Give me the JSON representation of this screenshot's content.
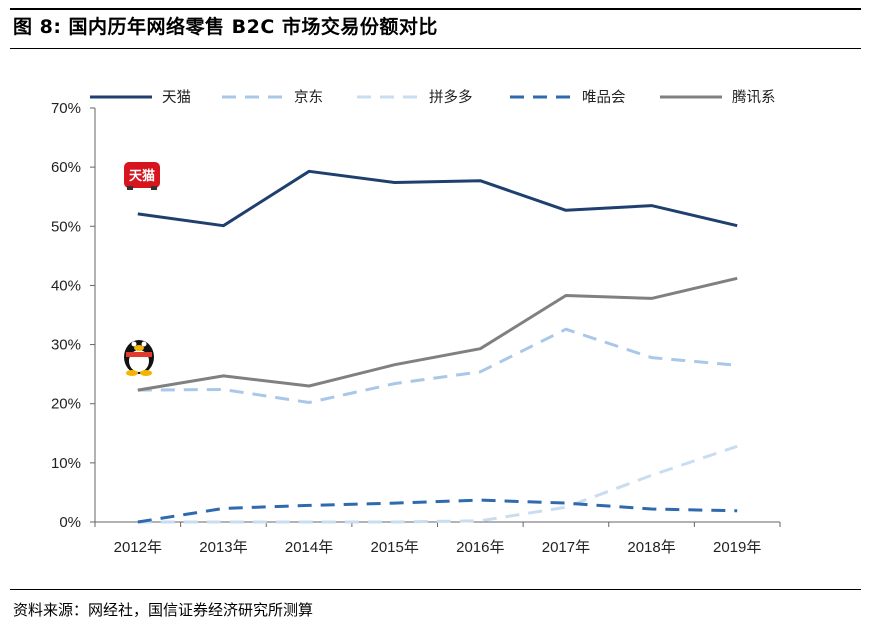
{
  "header": {
    "title": "图 8:  国内历年网络零售 B2C 市场交易份额对比"
  },
  "footer": {
    "source": "资料来源：网经社，国信证券经济研究所测算"
  },
  "chart_data": {
    "type": "line",
    "title": "",
    "xlabel": "",
    "ylabel": "",
    "categories": [
      "2012年",
      "2013年",
      "2014年",
      "2015年",
      "2016年",
      "2017年",
      "2018年",
      "2019年"
    ],
    "ylim": [
      0,
      70
    ],
    "yticks": [
      0,
      10,
      20,
      30,
      40,
      50,
      60,
      70
    ],
    "y_tick_format": "percent",
    "grid": false,
    "legend_position": "top",
    "series": [
      {
        "name": "天猫",
        "color": "#1f3f6e",
        "style": "solid",
        "values": [
          52.1,
          50.1,
          59.3,
          57.4,
          57.7,
          52.7,
          53.5,
          50.1
        ]
      },
      {
        "name": "京东",
        "color": "#a9c8e8",
        "style": "dashed",
        "values": [
          22.3,
          22.4,
          20.2,
          23.4,
          25.4,
          32.6,
          27.8,
          26.5
        ]
      },
      {
        "name": "拼多多",
        "color": "#c9ddf0",
        "style": "dashed",
        "values": [
          0,
          0,
          0,
          0,
          0.2,
          2.5,
          7.9,
          12.8
        ]
      },
      {
        "name": "唯品会",
        "color": "#2e6aad",
        "style": "dashed",
        "values": [
          0,
          2.3,
          2.8,
          3.2,
          3.7,
          3.2,
          2.2,
          1.9
        ]
      },
      {
        "name": "腾讯系",
        "color": "#808080",
        "style": "solid",
        "values": [
          22.3,
          24.7,
          23.0,
          26.6,
          29.3,
          38.3,
          37.8,
          41.2
        ]
      }
    ],
    "annotations": [
      {
        "kind": "logo",
        "name": "tmall-logo",
        "text": "天猫"
      },
      {
        "kind": "logo",
        "name": "qq-penguin-logo",
        "text": ""
      }
    ]
  }
}
